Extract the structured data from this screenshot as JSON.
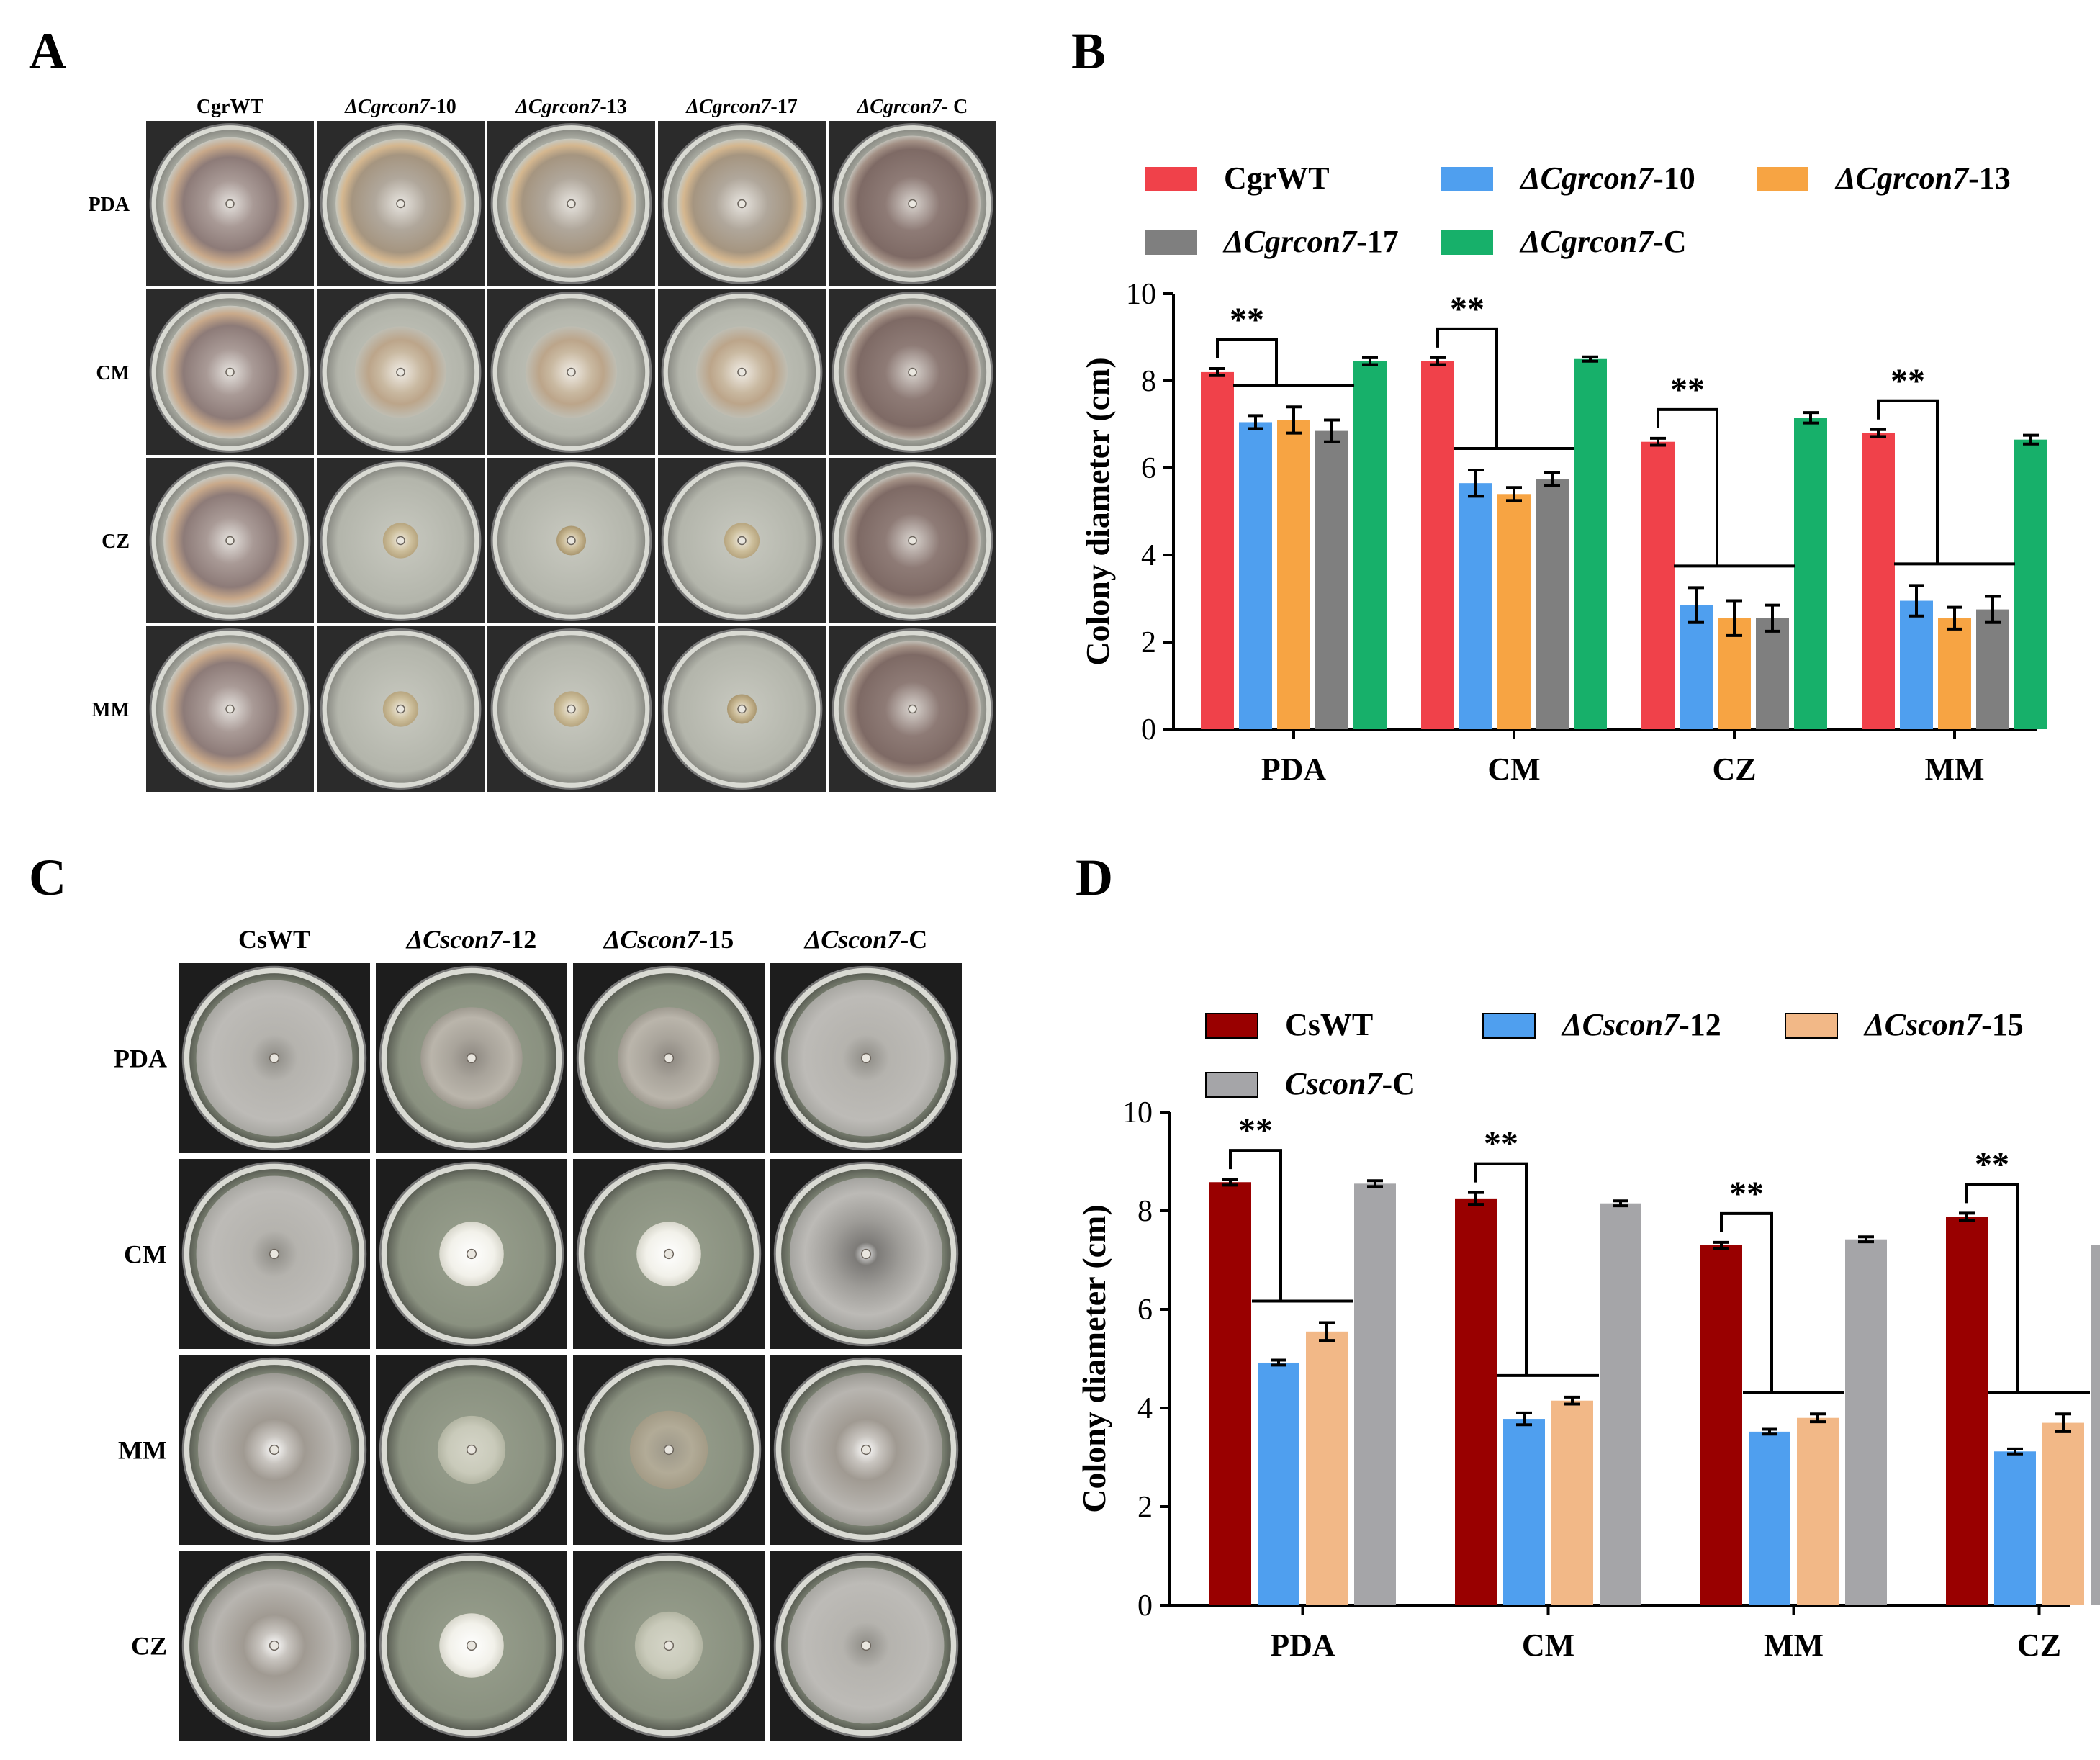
{
  "panels": {
    "A": {
      "letter": "A",
      "columns": [
        "CgrWT",
        "ΔCgrcon7-10",
        "ΔCgrcon7-13",
        "ΔCgrcon7-17",
        "ΔCgrcon7- C"
      ],
      "rows": [
        "PDA",
        "CM",
        "CZ",
        "MM"
      ],
      "plates": [
        [
          {
            "style": "wt"
          },
          {
            "style": "mut-full"
          },
          {
            "style": "mut-full"
          },
          {
            "style": "mut-full"
          },
          {
            "style": "comp"
          }
        ],
        [
          {
            "style": "wt"
          },
          {
            "style": "mut-mid"
          },
          {
            "style": "mut-mid"
          },
          {
            "style": "mut-mid"
          },
          {
            "style": "comp"
          }
        ],
        [
          {
            "style": "wt"
          },
          {
            "style": "small"
          },
          {
            "style": "small-dark"
          },
          {
            "style": "small"
          },
          {
            "style": "comp"
          }
        ],
        [
          {
            "style": "wt"
          },
          {
            "style": "small"
          },
          {
            "style": "small"
          },
          {
            "style": "small-dark"
          },
          {
            "style": "comp"
          }
        ]
      ],
      "colors": {
        "wt": "#9a8a86",
        "mut": "#b9a88e",
        "comp": "#8a7670",
        "agar": "#bfc0b6",
        "bg": "#2a2a2a"
      }
    },
    "C": {
      "letter": "C",
      "columns": [
        "CsWT",
        "ΔCscon7-12",
        "ΔCscon7-15",
        "ΔCscon7-C"
      ],
      "rows": [
        "PDA",
        "CM",
        "MM",
        "CZ"
      ],
      "plates": [
        [
          {
            "style": "grey-full"
          },
          {
            "style": "grey-mid"
          },
          {
            "style": "grey-mid"
          },
          {
            "style": "grey-full"
          }
        ],
        [
          {
            "style": "grey-full"
          },
          {
            "style": "white-small"
          },
          {
            "style": "white-small"
          },
          {
            "style": "grey-full-dark"
          }
        ],
        [
          {
            "style": "grey-full-center"
          },
          {
            "style": "pale-small"
          },
          {
            "style": "tan-small"
          },
          {
            "style": "grey-full-center"
          }
        ],
        [
          {
            "style": "grey-full-center"
          },
          {
            "style": "white-small"
          },
          {
            "style": "pale-small"
          },
          {
            "style": "grey-full"
          }
        ]
      ],
      "colors": {
        "agar": "#9aa090",
        "bg": "#1c1c1c"
      }
    },
    "B": {
      "letter": "B",
      "chart_data": {
        "type": "bar",
        "title": "",
        "xlabel": "",
        "ylabel": "Colony diameter (cm)",
        "ylim": [
          0,
          10
        ],
        "yticks": [
          "0",
          "2",
          "4",
          "6",
          "8",
          "10"
        ],
        "categories": [
          "PDA",
          "CM",
          "CZ",
          "MM"
        ],
        "legend_position": "top",
        "series": [
          {
            "name": "CgrWT",
            "prefix": "",
            "italic": "",
            "suffix": "CgrWT",
            "color": "#f0414a",
            "values": [
              8.2,
              8.45,
              6.6,
              6.8
            ],
            "errors": [
              0.08,
              0.08,
              0.08,
              0.08
            ]
          },
          {
            "name": "ΔCgrcon7-10",
            "prefix": "Δ",
            "italic": "Cgrcon7",
            "suffix": "-10",
            "color": "#4f9fef",
            "values": [
              7.05,
              5.65,
              2.85,
              2.95
            ],
            "errors": [
              0.15,
              0.3,
              0.4,
              0.35
            ]
          },
          {
            "name": "ΔCgrcon7-13",
            "prefix": "Δ",
            "italic": "Cgrcon7",
            "suffix": "-13",
            "color": "#f7a443",
            "values": [
              7.1,
              5.4,
              2.55,
              2.55
            ],
            "errors": [
              0.3,
              0.15,
              0.4,
              0.25
            ]
          },
          {
            "name": "ΔCgrcon7-17",
            "prefix": "Δ",
            "italic": "Cgrcon7",
            "suffix": "-17",
            "color": "#7f7f7f",
            "values": [
              6.85,
              5.75,
              2.55,
              2.75
            ],
            "errors": [
              0.25,
              0.15,
              0.3,
              0.3
            ]
          },
          {
            "name": "ΔCgrcon7-C",
            "prefix": "Δ",
            "italic": "Cgrcon7",
            "suffix": "-C",
            "color": "#17b06a",
            "values": [
              8.45,
              8.5,
              7.15,
              6.65
            ],
            "errors": [
              0.08,
              0.05,
              0.12,
              0.1
            ]
          }
        ],
        "annotations": [
          {
            "text": "**",
            "category": "PDA"
          },
          {
            "text": "**",
            "category": "CM"
          },
          {
            "text": "**",
            "category": "CZ"
          },
          {
            "text": "**",
            "category": "MM"
          }
        ]
      }
    },
    "D": {
      "letter": "D",
      "chart_data": {
        "type": "bar",
        "title": "",
        "xlabel": "",
        "ylabel": "Colony diameter (cm)",
        "ylim": [
          0,
          10
        ],
        "yticks": [
          "0",
          "2",
          "4",
          "6",
          "8",
          "10"
        ],
        "categories": [
          "PDA",
          "CM",
          "MM",
          "CZ"
        ],
        "legend_position": "top",
        "series": [
          {
            "name": "CsWT",
            "prefix": "",
            "italic": "",
            "suffix": "CsWT",
            "color": "#990000",
            "values": [
              8.58,
              8.25,
              7.3,
              7.88
            ],
            "errors": [
              0.06,
              0.12,
              0.06,
              0.07
            ]
          },
          {
            "name": "ΔCscon7-12",
            "prefix": "Δ",
            "italic": "Cscon7",
            "suffix": "-12",
            "color": "#4f9fef",
            "values": [
              4.92,
              3.78,
              3.52,
              3.12
            ],
            "errors": [
              0.05,
              0.12,
              0.05,
              0.05
            ]
          },
          {
            "name": "ΔCscon7-15",
            "prefix": "Δ",
            "italic": "Cscon7",
            "suffix": "-15",
            "color": "#f2b887",
            "values": [
              5.55,
              4.15,
              3.8,
              3.7
            ],
            "errors": [
              0.18,
              0.07,
              0.08,
              0.18
            ]
          },
          {
            "name": "Cscon7-C",
            "prefix": "",
            "italic": "Cscon7",
            "suffix": "-C",
            "color": "#a5a5a8",
            "values": [
              8.55,
              8.15,
              7.42,
              7.3
            ],
            "errors": [
              0.06,
              0.05,
              0.05,
              0.05
            ]
          }
        ],
        "annotations": [
          {
            "text": "**",
            "category": "PDA"
          },
          {
            "text": "**",
            "category": "CM"
          },
          {
            "text": "**",
            "category": "MM"
          },
          {
            "text": "**",
            "category": "CZ"
          }
        ]
      }
    }
  }
}
